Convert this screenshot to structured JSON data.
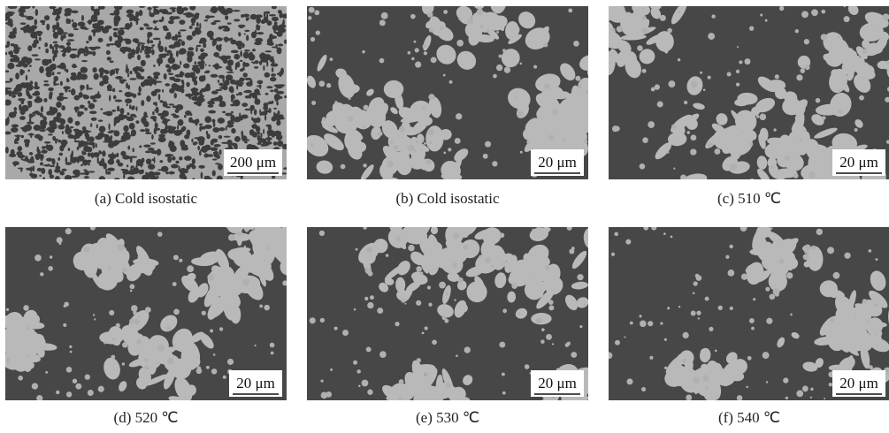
{
  "panels": [
    {
      "caption": "(a) Cold isostatic",
      "scale_bar": "200 μm"
    },
    {
      "caption": "(b) Cold isostatic",
      "scale_bar": "20 μm"
    },
    {
      "caption": "(c) 510 ℃",
      "scale_bar": "20 μm"
    },
    {
      "caption": "(d) 520 ℃",
      "scale_bar": "20 μm"
    },
    {
      "caption": "(e) 530 ℃",
      "scale_bar": "20 μm"
    },
    {
      "caption": "(f) 540 ℃",
      "scale_bar": "20 μm"
    }
  ]
}
